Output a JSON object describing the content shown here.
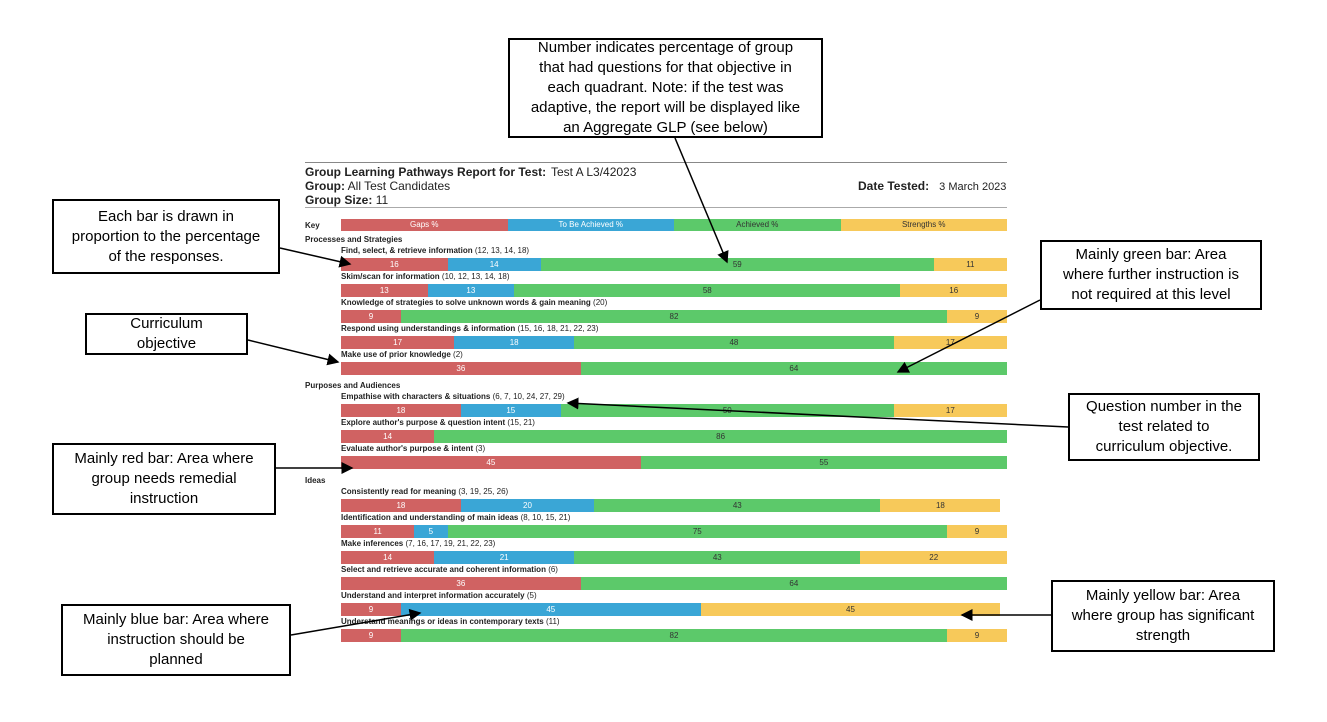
{
  "header": {
    "title": "Group Learning Pathways Report for Test:",
    "test": "Test A L3/42023",
    "group_label": "Group:",
    "group": "All Test Candidates",
    "date_label": "Date Tested:",
    "date": "3 March 2023",
    "size_label": "Group Size:",
    "size": 11
  },
  "key": {
    "label": "Key",
    "items": [
      {
        "name": "Gaps %",
        "color": "#d06262"
      },
      {
        "name": "To Be Achieved %",
        "color": "#3aa6d6"
      },
      {
        "name": "Achieved %",
        "color": "#5cc96a"
      },
      {
        "name": "Strengths %",
        "color": "#f7c95a"
      }
    ]
  },
  "sections": [
    {
      "title": "Processes and Strategies",
      "objectives": [
        {
          "name": "Find, select, & retrieve information",
          "questions": "(12, 13, 14, 18)",
          "values": [
            16,
            14,
            59,
            11
          ]
        },
        {
          "name": "Skim/scan for information",
          "questions": "(10, 12, 13, 14, 18)",
          "values": [
            13,
            13,
            58,
            16
          ]
        },
        {
          "name": "Knowledge of strategies to solve unknown words & gain meaning",
          "questions": "(20)",
          "values": [
            9,
            null,
            82,
            9
          ]
        },
        {
          "name": "Respond using understandings & information",
          "questions": "(15, 16, 18, 21, 22, 23)",
          "values": [
            17,
            18,
            48,
            17
          ]
        },
        {
          "name": "Make use of prior knowledge",
          "questions": "(2)",
          "values": [
            36,
            null,
            64,
            null
          ]
        }
      ]
    },
    {
      "title": "Purposes and Audiences",
      "objectives": [
        {
          "name": "Empathise with characters & situations",
          "questions": "(6, 7, 10, 24, 27, 29)",
          "values": [
            18,
            15,
            50,
            17
          ]
        },
        {
          "name": "Explore author's purpose & question intent",
          "questions": "(15, 21)",
          "values": [
            14,
            null,
            86,
            null
          ]
        },
        {
          "name": "Evaluate author's purpose & intent",
          "questions": "(3)",
          "values": [
            45,
            null,
            55,
            null
          ]
        }
      ]
    },
    {
      "title": "Ideas",
      "objectives": [
        {
          "name": "Consistently read for meaning",
          "questions": "(3, 19, 25, 26)",
          "values": [
            18,
            20,
            43,
            18
          ]
        },
        {
          "name": "Identification and understanding of main ideas",
          "questions": "(8, 10, 15, 21)",
          "values": [
            11,
            5,
            75,
            9
          ]
        },
        {
          "name": "Make inferences",
          "questions": "(7, 16, 17, 19, 21, 22, 23)",
          "values": [
            14,
            21,
            43,
            22
          ]
        },
        {
          "name": "Select and retrieve accurate and coherent information",
          "questions": "(6)",
          "values": [
            36,
            null,
            64,
            null
          ]
        },
        {
          "name": "Understand and interpret information accurately",
          "questions": "(5)",
          "values": [
            9,
            45,
            null,
            45
          ]
        },
        {
          "name": "Understand meanings or ideas in contemporary texts",
          "questions": "(11)",
          "values": [
            9,
            null,
            82,
            9
          ]
        }
      ]
    }
  ],
  "callouts": [
    {
      "lines": [
        "Number indicates percentage of group",
        "that had questions for that objective in",
        "each quadrant. Note: if the test was",
        "adaptive, the report will be displayed like",
        "an Aggregate GLP (see below)"
      ]
    },
    {
      "lines": [
        "Each bar is drawn in",
        "proportion to the percentage",
        "of the responses."
      ]
    },
    {
      "lines": [
        "Curriculum",
        "objective"
      ]
    },
    {
      "lines": [
        "Mainly green bar: Area",
        "where further instruction is",
        "not required at this level"
      ]
    },
    {
      "lines": [
        "Question number in the",
        "test related to",
        "curriculum objective."
      ]
    },
    {
      "lines": [
        "Mainly red bar: Area where",
        "group needs remedial",
        "instruction"
      ]
    },
    {
      "lines": [
        "Mainly yellow bar: Area",
        "where group has significant",
        "strength"
      ]
    },
    {
      "lines": [
        "Mainly blue bar: Area where",
        "instruction should be",
        "planned"
      ]
    }
  ]
}
